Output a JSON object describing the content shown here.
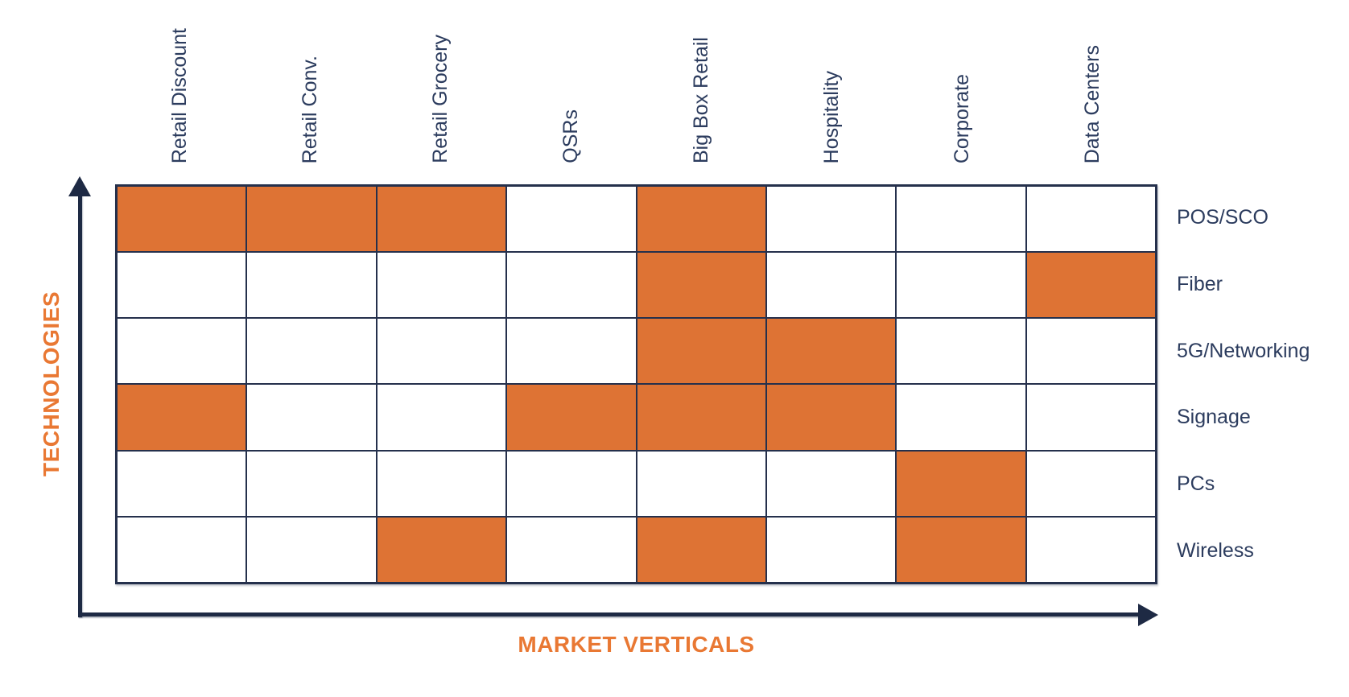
{
  "chart_data": {
    "type": "heatmap",
    "xlabel": "MARKET VERTICALS",
    "ylabel": "TECHNOLOGIES",
    "categories": [
      "Retail Discount",
      "Retail Conv.",
      "Retail Grocery",
      "QSRs",
      "Big Box Retail",
      "Hospitality",
      "Corporate",
      "Data Centers"
    ],
    "rows": [
      "POS/SCO",
      "Fiber",
      "5G/Networking",
      "Signage",
      "PCs",
      "Wireless"
    ],
    "matrix": [
      [
        1,
        1,
        1,
        0,
        1,
        0,
        0,
        0
      ],
      [
        0,
        0,
        0,
        0,
        1,
        0,
        0,
        1
      ],
      [
        0,
        0,
        0,
        0,
        1,
        1,
        0,
        0
      ],
      [
        1,
        0,
        0,
        1,
        1,
        1,
        0,
        0
      ],
      [
        0,
        0,
        0,
        0,
        0,
        0,
        1,
        0
      ],
      [
        0,
        0,
        1,
        0,
        1,
        0,
        1,
        0
      ]
    ],
    "layout": {
      "grid_on": true,
      "x_axis_arrow": "right",
      "y_axis_arrow": "up",
      "column_headers_position": "top-rotated",
      "row_labels_position": "right"
    },
    "colors": {
      "filled_cell": "#DE7334",
      "empty_cell": "#FFFFFF",
      "grid_line": "#25304C",
      "axis_arrow": "#1E2A44",
      "axis_title_text": "#E97833",
      "tick_label_text": "#2C3C5E"
    }
  }
}
